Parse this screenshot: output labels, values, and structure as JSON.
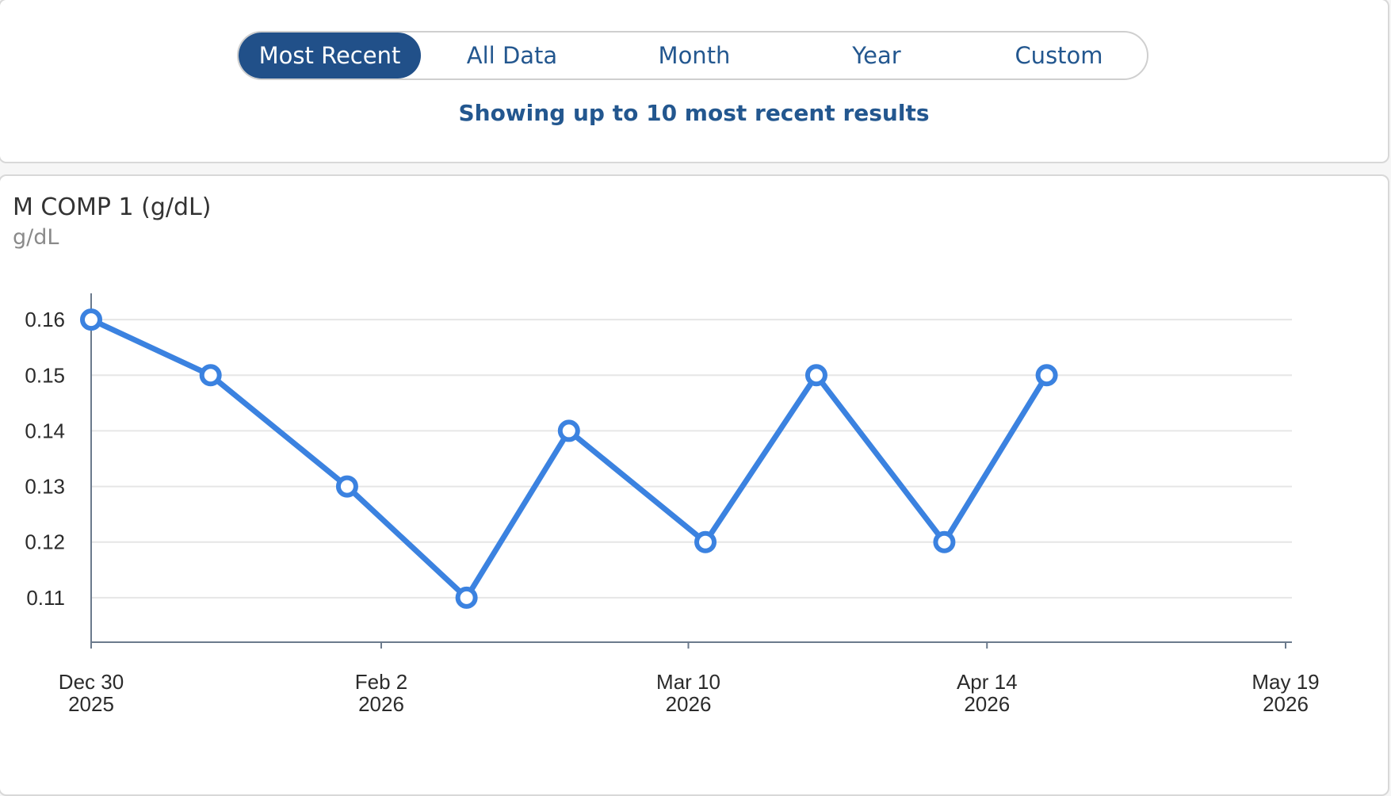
{
  "filters": {
    "tabs": [
      {
        "label": "Most Recent",
        "active": true
      },
      {
        "label": "All Data",
        "active": false
      },
      {
        "label": "Month",
        "active": false
      },
      {
        "label": "Year",
        "active": false
      },
      {
        "label": "Custom",
        "active": false
      }
    ],
    "note": "Showing up to 10 most recent results"
  },
  "colors": {
    "accent": "#215089",
    "series": "#3b82e0",
    "grid": "#e6e6e6",
    "axis": "#6b7a8c"
  },
  "chart_data": {
    "type": "line",
    "title": "M COMP 1 (g/dL)",
    "subtitle": "g/dL",
    "x_type": "date",
    "xlim": [
      "2025-12-30",
      "2026-05-19"
    ],
    "ylim": [
      0.102,
      0.168
    ],
    "grid": true,
    "x_ticks": [
      {
        "date": "2025-12-30",
        "line1": "Dec 30",
        "line2": "2025"
      },
      {
        "date": "2026-02-02",
        "line1": "Feb 2",
        "line2": "2026"
      },
      {
        "date": "2026-03-10",
        "line1": "Mar 10",
        "line2": "2026"
      },
      {
        "date": "2026-04-14",
        "line1": "Apr 14",
        "line2": "2026"
      },
      {
        "date": "2026-05-19",
        "line1": "May 19",
        "line2": "2026"
      }
    ],
    "y_ticks": [
      0.11,
      0.12,
      0.13,
      0.14,
      0.15,
      0.16
    ],
    "series": [
      {
        "points": [
          {
            "x": "2025-12-30",
            "y": 0.16
          },
          {
            "x": "2026-01-13",
            "y": 0.15
          },
          {
            "x": "2026-01-29",
            "y": 0.13
          },
          {
            "x": "2026-02-12",
            "y": 0.11
          },
          {
            "x": "2026-02-24",
            "y": 0.14
          },
          {
            "x": "2026-03-12",
            "y": 0.12
          },
          {
            "x": "2026-03-25",
            "y": 0.15
          },
          {
            "x": "2026-04-09",
            "y": 0.12
          },
          {
            "x": "2026-04-21",
            "y": 0.15
          }
        ]
      }
    ]
  }
}
